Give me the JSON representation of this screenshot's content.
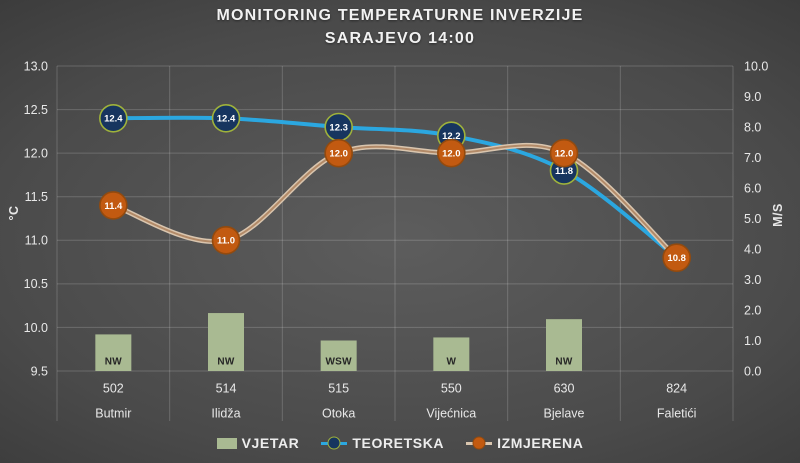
{
  "chart_data": {
    "type": "combo-bar-line",
    "title_line1": "MONITORING TEMPERATURNE INVERZIJE",
    "title_line2": "SARAJEVO 14:00",
    "categories": [
      "502",
      "514",
      "515",
      "550",
      "630",
      "824"
    ],
    "category_names": [
      "Butmir",
      "Ilidža",
      "Otoka",
      "Vijećnica",
      "Bjelave",
      "Faletići"
    ],
    "left_axis": {
      "label": "°C",
      "min": 9.5,
      "max": 13.0,
      "step": 0.5,
      "tick_decimals": 1
    },
    "right_axis": {
      "label": "M/S",
      "min": 0.0,
      "max": 10.0,
      "step": 1.0,
      "tick_decimals": 1
    },
    "grid": true,
    "grid_color": "rgba(255,255,255,0.18)",
    "tick_color": "#e8e8e8",
    "legend_position": "bottom",
    "series": [
      {
        "name": "VJETAR",
        "type": "bar",
        "axis": "right",
        "color": "#a9ba92",
        "bar_label_color": "#262626",
        "values": [
          1.2,
          1.9,
          1.0,
          1.1,
          1.7,
          null
        ],
        "bar_labels": [
          "NW",
          "NW",
          "WSW",
          "W",
          "NW",
          null
        ]
      },
      {
        "name": "TEORETSKA",
        "type": "line",
        "axis": "left",
        "line_color": "#2ba7e0",
        "marker_fill": "#17355f",
        "marker_ring": "#9fb23b",
        "marker_label_color": "#ffffff",
        "values": [
          12.4,
          12.4,
          12.3,
          12.2,
          11.8,
          10.8
        ],
        "marker_visible": [
          true,
          true,
          true,
          true,
          true,
          false
        ]
      },
      {
        "name": "IZMJERENA",
        "type": "line",
        "axis": "left",
        "line_color": "#d9c5ae",
        "line_core_color": "#b28a68",
        "marker_fill": "#c25a11",
        "marker_ring": "#934a0e",
        "marker_label_color": "#ffffff",
        "values": [
          11.4,
          11.0,
          12.0,
          12.0,
          12.0,
          10.8
        ],
        "marker_visible": [
          true,
          true,
          true,
          true,
          true,
          true
        ]
      }
    ]
  }
}
